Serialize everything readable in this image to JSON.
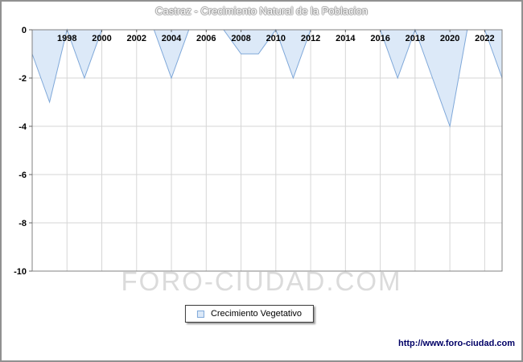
{
  "title": "Castraz - Crecimiento Natural de la Poblacion",
  "watermark": "FORO-CIUDAD.COM",
  "legend": {
    "label": "Crecimiento Vegetativo"
  },
  "footer": {
    "url": "http://www.foro-ciudad.com"
  },
  "colors": {
    "area_fill": "#dce9f8",
    "area_line": "#7fa8d9",
    "grid": "#d6d6d6",
    "plot_border": "#808080",
    "tick": "#666666"
  },
  "chart_data": {
    "type": "area",
    "title": "Castraz - Crecimiento Natural de la Poblacion",
    "series_name": "Crecimiento Vegetativo",
    "x": [
      1996,
      1997,
      1998,
      1999,
      2000,
      2001,
      2002,
      2003,
      2004,
      2005,
      2006,
      2007,
      2008,
      2009,
      2010,
      2011,
      2012,
      2013,
      2014,
      2015,
      2016,
      2017,
      2018,
      2019,
      2020,
      2021,
      2022,
      2023
    ],
    "values": [
      -1,
      -3,
      0,
      -2,
      0,
      0,
      0,
      0,
      -2,
      0,
      0,
      0,
      -1,
      -1,
      0,
      -2,
      0,
      0,
      0,
      0,
      0,
      -2,
      0,
      -2,
      -4,
      0,
      0,
      -2
    ],
    "xticks": [
      1998,
      2000,
      2002,
      2004,
      2006,
      2008,
      2010,
      2012,
      2014,
      2016,
      2018,
      2020,
      2022
    ],
    "yticks": [
      0,
      -2,
      -4,
      -6,
      -8,
      -10
    ],
    "ylim": [
      -10,
      0
    ],
    "grid": true,
    "legend_position": "bottom"
  }
}
